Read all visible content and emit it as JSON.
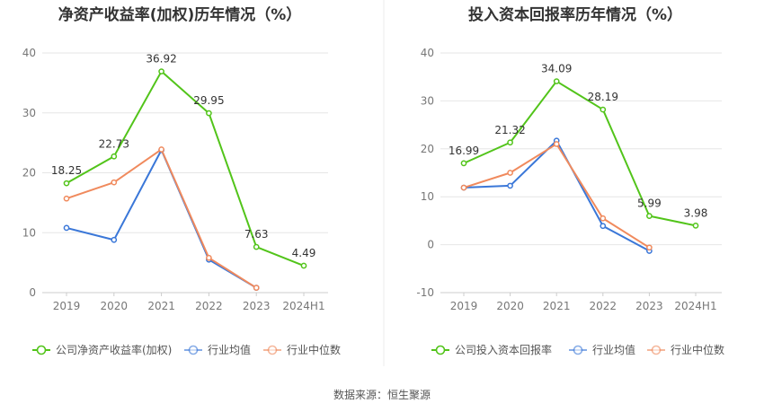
{
  "source": "数据来源：恒生聚源",
  "chart_data": [
    {
      "type": "line",
      "title": "净资产收益率(加权)历年情况（%）",
      "categories": [
        "2019",
        "2020",
        "2021",
        "2022",
        "2023",
        "2024H1"
      ],
      "ylim": [
        0,
        40
      ],
      "yticks": [
        0,
        10,
        20,
        30,
        40
      ],
      "grid": true,
      "legend_position": "bottom",
      "series": [
        {
          "name": "公司净资产收益率(加权)",
          "color": "#52c41a",
          "values": [
            18.25,
            22.73,
            36.92,
            29.95,
            7.63,
            4.49
          ],
          "labels": true
        },
        {
          "name": "行业均值",
          "color": "#3a77d8",
          "values": [
            10.8,
            8.8,
            23.8,
            5.5,
            0.8,
            null
          ],
          "labels": false
        },
        {
          "name": "行业中位数",
          "color": "#f08a5d",
          "values": [
            15.7,
            18.4,
            23.9,
            5.8,
            0.8,
            null
          ],
          "labels": false
        }
      ]
    },
    {
      "type": "line",
      "title": "投入资本回报率历年情况（%）",
      "categories": [
        "2019",
        "2020",
        "2021",
        "2022",
        "2023",
        "2024H1"
      ],
      "ylim": [
        -10,
        40
      ],
      "yticks": [
        -10,
        0,
        10,
        20,
        30,
        40
      ],
      "grid": true,
      "legend_position": "bottom",
      "series": [
        {
          "name": "公司投入资本回报率",
          "color": "#52c41a",
          "values": [
            16.99,
            21.32,
            34.09,
            28.19,
            5.99,
            3.98
          ],
          "labels": true
        },
        {
          "name": "行业均值",
          "color": "#3a77d8",
          "values": [
            11.9,
            12.3,
            21.7,
            3.9,
            -1.3,
            null
          ],
          "labels": false
        },
        {
          "name": "行业中位数",
          "color": "#f08a5d",
          "values": [
            11.9,
            15.0,
            21.0,
            5.5,
            -0.6,
            null
          ],
          "labels": false
        }
      ]
    }
  ]
}
